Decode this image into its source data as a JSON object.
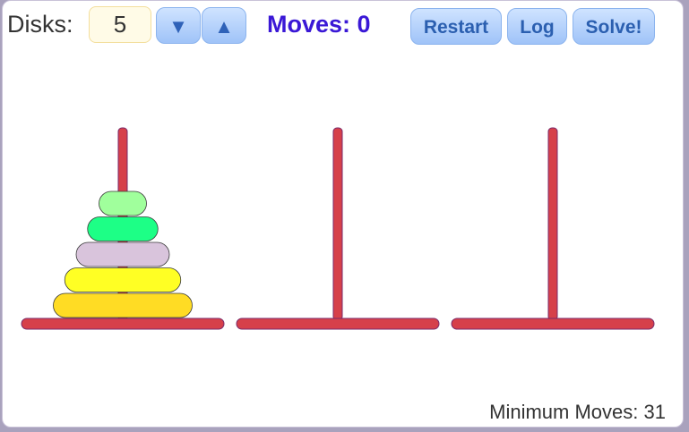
{
  "controls": {
    "disks_label": "Disks:",
    "disk_count": "5",
    "decrease_label": "▼",
    "increase_label": "▲",
    "moves_label": "Moves:",
    "moves_value": "0",
    "restart_label": "Restart",
    "log_label": "Log",
    "solve_label": "Solve!"
  },
  "footer": {
    "min_moves_label": "Minimum Moves:",
    "min_moves_value": "31"
  },
  "colors": {
    "peg": "#d6404a",
    "peg_outline": "#7a2a6a",
    "moves_text": "#3a18d6"
  },
  "game": {
    "disk_count": 5,
    "pegs": [
      {
        "name": "peg-1",
        "disks": [
          {
            "size": 5,
            "color": "#ffdc24"
          },
          {
            "size": 4,
            "color": "#ffff24"
          },
          {
            "size": 3,
            "color": "#d9c4dc"
          },
          {
            "size": 2,
            "color": "#1dff86"
          },
          {
            "size": 1,
            "color": "#a0ff9c"
          }
        ]
      },
      {
        "name": "peg-2",
        "disks": []
      },
      {
        "name": "peg-3",
        "disks": []
      }
    ]
  }
}
